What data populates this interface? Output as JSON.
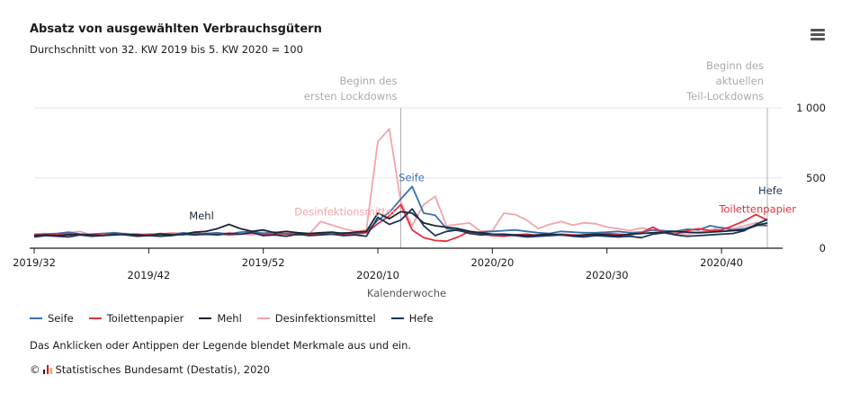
{
  "header": {
    "title": "Absatz von ausgewählten Verbrauchsgütern",
    "subtitle": "Durchschnitt von 32. KW 2019 bis 5. KW 2020 = 100",
    "menu_icon": "hamburger-menu-icon"
  },
  "footer": {
    "hint": "Das Anklicken oder Antippen der Legende blendet Merkmale aus und ein.",
    "copyright_symbol": "©",
    "source": "Statistisches Bundesamt (Destatis), 2020",
    "logo_icon": "destatis-logo-icon",
    "logo_colors": [
      "#1b1b1b",
      "#e2001a",
      "#f2a900"
    ]
  },
  "chart_data": {
    "type": "line",
    "title": "Absatz von ausgewählten Verbrauchsgütern",
    "subtitle": "Durchschnitt von 32. KW 2019 bis 5. KW 2020 = 100",
    "xlabel": "Kalenderwoche",
    "ylabel": "",
    "ylim": [
      0,
      1000
    ],
    "grid": true,
    "legend_position": "bottom-left",
    "x": [
      "2019/32",
      "2019/33",
      "2019/34",
      "2019/35",
      "2019/36",
      "2019/37",
      "2019/38",
      "2019/39",
      "2019/40",
      "2019/41",
      "2019/42",
      "2019/43",
      "2019/44",
      "2019/45",
      "2019/46",
      "2019/47",
      "2019/48",
      "2019/49",
      "2019/50",
      "2019/51",
      "2019/52",
      "2020/01",
      "2020/02",
      "2020/03",
      "2020/04",
      "2020/05",
      "2020/06",
      "2020/07",
      "2020/08",
      "2020/09",
      "2020/10",
      "2020/11",
      "2020/12",
      "2020/13",
      "2020/14",
      "2020/15",
      "2020/16",
      "2020/17",
      "2020/18",
      "2020/19",
      "2020/20",
      "2020/21",
      "2020/22",
      "2020/23",
      "2020/24",
      "2020/25",
      "2020/26",
      "2020/27",
      "2020/28",
      "2020/29",
      "2020/30",
      "2020/31",
      "2020/32",
      "2020/33",
      "2020/34",
      "2020/35",
      "2020/36",
      "2020/37",
      "2020/38",
      "2020/39",
      "2020/40",
      "2020/41",
      "2020/42",
      "2020/43",
      "2020/44"
    ],
    "x_ticks_upper": [
      "2019/32",
      "2019/52",
      "2020/20",
      "2020/40"
    ],
    "x_ticks_lower": [
      "2019/42",
      "2020/10",
      "2020/30"
    ],
    "y_ticks": [
      {
        "value": 0,
        "label": "0"
      },
      {
        "value": 500,
        "label": "500"
      },
      {
        "value": 1000,
        "label": "1 000"
      }
    ],
    "plot_bands": [
      {
        "at": "2020/12",
        "label_lines": [
          "Beginn des",
          "ersten Lockdowns"
        ]
      },
      {
        "at": "2020/44",
        "label_lines": [
          "Beginn des",
          "aktuellen",
          "Teil-Lockdowns"
        ]
      }
    ],
    "series": [
      {
        "name": "Seife",
        "color": "#3a6fb0",
        "label": "Seife",
        "label_at": "2020/12",
        "values": [
          95,
          100,
          105,
          115,
          100,
          95,
          105,
          110,
          100,
          95,
          100,
          100,
          95,
          110,
          100,
          105,
          110,
          100,
          115,
          120,
          105,
          115,
          100,
          95,
          100,
          105,
          100,
          110,
          105,
          115,
          200,
          255,
          350,
          440,
          250,
          235,
          140,
          125,
          110,
          115,
          120,
          125,
          130,
          120,
          110,
          105,
          120,
          115,
          110,
          110,
          115,
          120,
          110,
          115,
          130,
          125,
          120,
          135,
          130,
          160,
          145,
          130,
          140,
          165,
          160
        ]
      },
      {
        "name": "Toilettenpapier",
        "color": "#e0313f",
        "label": "Toilettenpapier",
        "label_at": "2020/39",
        "values": [
          100,
          95,
          100,
          105,
          95,
          100,
          105,
          95,
          100,
          100,
          95,
          105,
          100,
          95,
          110,
          100,
          105,
          95,
          100,
          110,
          95,
          100,
          105,
          100,
          95,
          105,
          100,
          95,
          100,
          110,
          175,
          230,
          310,
          130,
          75,
          55,
          50,
          80,
          120,
          100,
          90,
          85,
          95,
          100,
          90,
          95,
          100,
          95,
          90,
          100,
          105,
          100,
          95,
          110,
          150,
          110,
          100,
          125,
          140,
          125,
          130,
          160,
          195,
          240,
          200
        ]
      },
      {
        "name": "Mehl",
        "color": "#1a2633",
        "label": "Mehl",
        "label_at": "2019/46",
        "values": [
          90,
          95,
          90,
          95,
          100,
          95,
          90,
          95,
          100,
          95,
          90,
          100,
          95,
          100,
          115,
          120,
          140,
          170,
          140,
          120,
          130,
          110,
          120,
          110,
          105,
          110,
          115,
          105,
          115,
          120,
          250,
          210,
          260,
          250,
          180,
          160,
          150,
          140,
          120,
          110,
          100,
          100,
          95,
          90,
          95,
          100,
          95,
          90,
          95,
          100,
          95,
          90,
          100,
          105,
          110,
          115,
          120,
          115,
          110,
          115,
          120,
          125,
          130,
          160,
          180
        ]
      },
      {
        "name": "Desinfektionsmittel",
        "color": "#f3a4a8",
        "label": "Desinfektionsmittel",
        "label_at": "2020/09",
        "values": [
          100,
          105,
          95,
          110,
          120,
          95,
          100,
          110,
          105,
          90,
          95,
          100,
          110,
          105,
          100,
          95,
          100,
          110,
          105,
          95,
          115,
          105,
          100,
          110,
          100,
          190,
          165,
          140,
          120,
          130,
          760,
          850,
          330,
          160,
          310,
          370,
          160,
          170,
          180,
          120,
          125,
          250,
          240,
          200,
          140,
          170,
          190,
          165,
          180,
          175,
          150,
          140,
          125,
          145,
          130,
          120,
          110,
          100,
          115,
          130,
          150,
          140,
          160,
          180,
          165
        ]
      },
      {
        "name": "Hefe",
        "color": "#1d3557",
        "label": "Hefe",
        "label_at": "2020/44",
        "values": [
          80,
          90,
          85,
          80,
          95,
          85,
          90,
          100,
          95,
          85,
          90,
          85,
          90,
          100,
          95,
          100,
          95,
          105,
          100,
          110,
          90,
          95,
          85,
          100,
          90,
          95,
          100,
          90,
          95,
          85,
          220,
          170,
          200,
          280,
          160,
          90,
          120,
          130,
          105,
          95,
          100,
          95,
          90,
          80,
          85,
          90,
          95,
          85,
          80,
          90,
          85,
          80,
          85,
          75,
          100,
          110,
          95,
          85,
          90,
          95,
          100,
          105,
          125,
          170,
          205
        ]
      }
    ]
  }
}
